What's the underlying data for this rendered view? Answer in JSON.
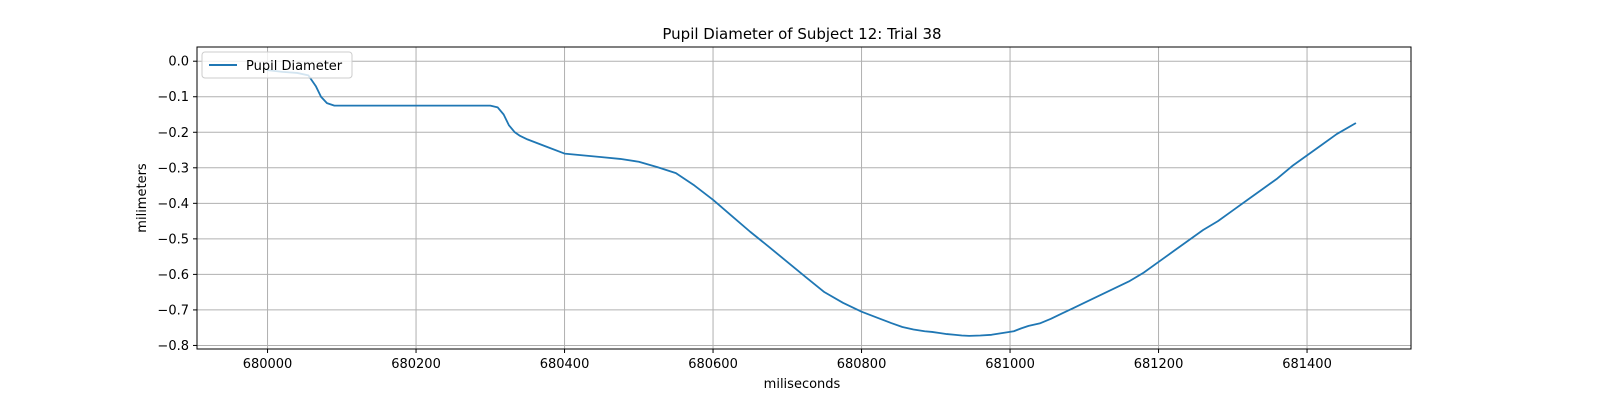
{
  "chart_data": {
    "type": "line",
    "title": "Pupil Diameter of Subject 12: Trial 38",
    "xlabel": "miliseconds",
    "ylabel": "milimeters",
    "xlim": [
      679905,
      681540
    ],
    "ylim": [
      -0.81,
      0.04
    ],
    "xticks": [
      680000,
      680200,
      680400,
      680600,
      680800,
      681000,
      681200,
      681400
    ],
    "yticks": [
      0.0,
      -0.1,
      -0.2,
      -0.3,
      -0.4,
      -0.5,
      -0.6,
      -0.7,
      -0.8
    ],
    "ytick_labels": [
      "0.0",
      "−0.1",
      "−0.2",
      "−0.3",
      "−0.4",
      "−0.5",
      "−0.6",
      "−0.7",
      "−0.8"
    ],
    "grid": true,
    "legend_position": "upper left",
    "series": [
      {
        "name": "Pupil Diameter",
        "color": "#1f77b4",
        "x": [
          680000,
          680020,
          680040,
          680055,
          680065,
          680072,
          680080,
          680090,
          680100,
          680150,
          680200,
          680250,
          680300,
          680310,
          680318,
          680325,
          680333,
          680340,
          680350,
          680375,
          680400,
          680425,
          680450,
          680475,
          680500,
          680525,
          680550,
          680575,
          680600,
          680625,
          680650,
          680675,
          680700,
          680725,
          680750,
          680775,
          680800,
          680825,
          680840,
          680855,
          680870,
          680885,
          680895,
          680905,
          680915,
          680925,
          680935,
          680945,
          680960,
          680975,
          680990,
          681005,
          681015,
          681025,
          681040,
          681055,
          681070,
          681085,
          681100,
          681120,
          681140,
          681160,
          681180,
          681200,
          681220,
          681240,
          681260,
          681280,
          681300,
          681320,
          681340,
          681360,
          681380,
          681400,
          681420,
          681440,
          681465
        ],
        "y": [
          -0.025,
          -0.03,
          -0.033,
          -0.04,
          -0.07,
          -0.1,
          -0.118,
          -0.125,
          -0.125,
          -0.125,
          -0.125,
          -0.125,
          -0.125,
          -0.13,
          -0.15,
          -0.18,
          -0.2,
          -0.21,
          -0.22,
          -0.24,
          -0.26,
          -0.265,
          -0.27,
          -0.275,
          -0.283,
          -0.298,
          -0.315,
          -0.35,
          -0.39,
          -0.435,
          -0.48,
          -0.522,
          -0.565,
          -0.608,
          -0.65,
          -0.68,
          -0.705,
          -0.725,
          -0.737,
          -0.748,
          -0.755,
          -0.76,
          -0.762,
          -0.765,
          -0.768,
          -0.77,
          -0.772,
          -0.773,
          -0.772,
          -0.77,
          -0.765,
          -0.76,
          -0.752,
          -0.745,
          -0.738,
          -0.725,
          -0.71,
          -0.695,
          -0.68,
          -0.66,
          -0.64,
          -0.62,
          -0.595,
          -0.565,
          -0.535,
          -0.505,
          -0.475,
          -0.45,
          -0.42,
          -0.39,
          -0.36,
          -0.33,
          -0.295,
          -0.265,
          -0.235,
          -0.205,
          -0.175
        ]
      }
    ]
  }
}
